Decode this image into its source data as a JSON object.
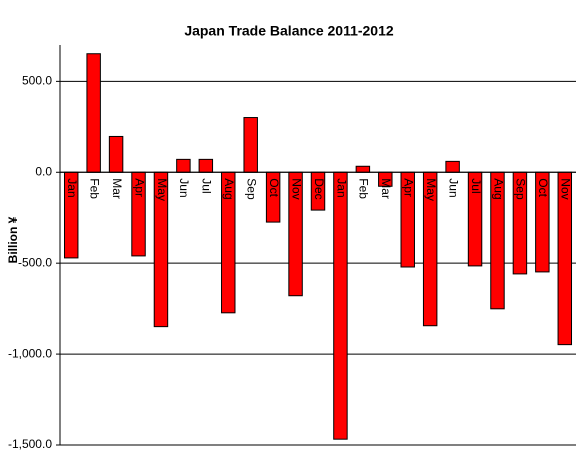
{
  "chart_data": {
    "type": "bar",
    "title": "Japan  Trade Balance 2011-2012",
    "y_label": "Billion ¥",
    "categories": [
      "Jan",
      "Feb",
      "Mar",
      "Apr",
      "May",
      "Jun",
      "Jul",
      "Aug",
      "Sep",
      "Oct",
      "Nov",
      "Dec",
      "Jan",
      "Feb",
      "Mar",
      "Apr",
      "May",
      "Jun",
      "Jul",
      "Aug",
      "Sep",
      "Oct",
      "Nov"
    ],
    "values": [
      -471,
      652,
      197,
      -460,
      -849,
      71,
      71,
      -773,
      301,
      -274,
      -679,
      -208,
      -1468,
      33,
      -77,
      -521,
      -844,
      60,
      -515,
      -751,
      -559,
      -548,
      -948
    ],
    "color": "#ff0000",
    "ylim": [
      -1500,
      700
    ],
    "yticks": [
      {
        "value": 500,
        "label": "500.0"
      },
      {
        "value": 0,
        "label": "0.0"
      },
      {
        "value": -500,
        "label": "-500.0"
      },
      {
        "value": -1000,
        "label": "-1,000.0"
      },
      {
        "value": -1500,
        "label": "-1,500.0"
      }
    ],
    "grid": true
  }
}
